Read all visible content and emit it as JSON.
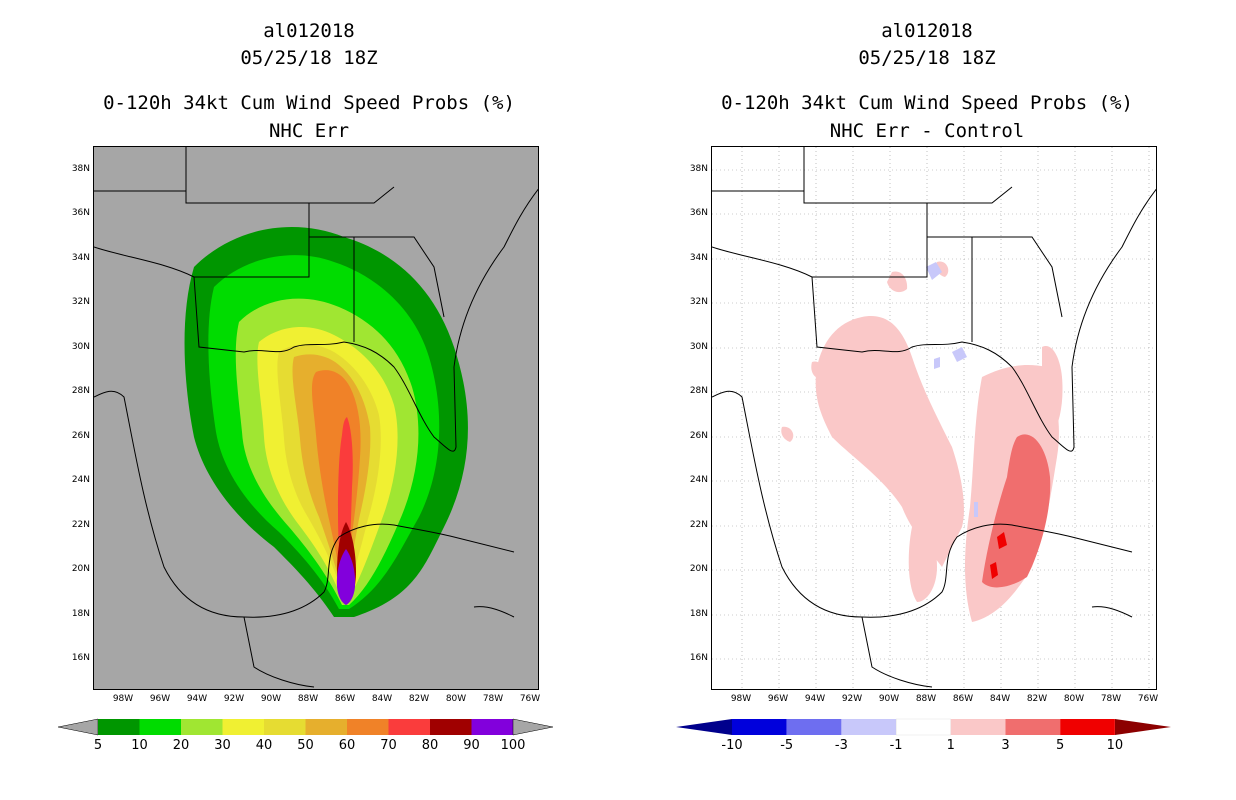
{
  "left": {
    "storm_id": "al012018",
    "datetime": "05/25/18 18Z",
    "product": "0-120h 34kt Cum Wind Speed Probs (%)",
    "subtitle": "NHC Err",
    "lat_labels": [
      "38N",
      "36N",
      "34N",
      "32N",
      "30N",
      "28N",
      "26N",
      "24N",
      "22N",
      "20N",
      "18N",
      "16N"
    ],
    "lon_labels": [
      "98W",
      "96W",
      "94W",
      "92W",
      "90W",
      "88W",
      "86W",
      "84W",
      "82W",
      "80W",
      "78W",
      "76W"
    ],
    "colorbar": {
      "labels": [
        "5",
        "10",
        "20",
        "30",
        "40",
        "50",
        "60",
        "70",
        "80",
        "90",
        "100"
      ],
      "colors": [
        "#009600",
        "#00dc00",
        "#a0e632",
        "#f0f032",
        "#e6dc32",
        "#e6af2d",
        "#f08228",
        "#fa3c3c",
        "#a00000",
        "#8200dc"
      ],
      "arrow_color": "#a6a6a6"
    }
  },
  "right": {
    "storm_id": "al012018",
    "datetime": "05/25/18 18Z",
    "product": "0-120h 34kt Cum Wind Speed Probs (%)",
    "subtitle": "NHC Err - Control",
    "lat_labels": [
      "38N",
      "36N",
      "34N",
      "32N",
      "30N",
      "28N",
      "26N",
      "24N",
      "22N",
      "20N",
      "18N",
      "16N"
    ],
    "lon_labels": [
      "98W",
      "96W",
      "94W",
      "92W",
      "90W",
      "88W",
      "86W",
      "84W",
      "82W",
      "80W",
      "78W",
      "76W"
    ],
    "colorbar": {
      "labels": [
        "-10",
        "-5",
        "-3",
        "-1",
        "1",
        "3",
        "5",
        "10"
      ],
      "colors": [
        "#0000dc",
        "#6e6ef0",
        "#c8c8fa",
        "#ffffff",
        "#fac8c8",
        "#f06e6e",
        "#f00000"
      ],
      "arrow_left": "#00008c",
      "arrow_right": "#8c0000"
    }
  }
}
